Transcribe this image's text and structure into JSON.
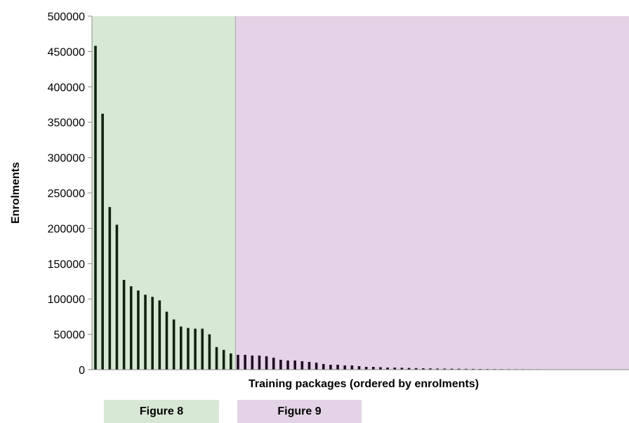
{
  "chart_data": {
    "type": "bar",
    "xlabel": "Training packages (ordered by enrolments)",
    "ylabel": "Enrolments",
    "ylim": [
      0,
      500000
    ],
    "yticks": [
      0,
      50000,
      100000,
      150000,
      200000,
      250000,
      300000,
      350000,
      400000,
      450000,
      500000
    ],
    "grid": false,
    "bar_color": "#0f240f",
    "bar_color_after_split": "#1e0d22",
    "values": [
      458000,
      362000,
      230000,
      205000,
      127000,
      118000,
      112000,
      106000,
      103000,
      98000,
      82000,
      71000,
      61000,
      59000,
      58000,
      58000,
      50000,
      32000,
      28000,
      23000,
      21000,
      21000,
      20000,
      20000,
      19000,
      17000,
      14000,
      13000,
      13000,
      12000,
      11000,
      10000,
      8000,
      7000,
      7000,
      6000,
      6000,
      5000,
      4000,
      4000,
      3500,
      3000,
      3000,
      2800,
      2500,
      2200,
      2000,
      1800,
      1600,
      1500,
      1400,
      1300,
      1200,
      1100,
      1000,
      900,
      850,
      800,
      750,
      700,
      650,
      600,
      550,
      500,
      450,
      420,
      400,
      380,
      350,
      330,
      300,
      280,
      260,
      240,
      220
    ],
    "regions": [
      {
        "label": "Figure 8",
        "from_index": 0,
        "to_index": 19,
        "color": "#d7e8d4"
      },
      {
        "label": "Figure 9",
        "from_index": 20,
        "to_index": 74,
        "color": "#e4d3e6"
      }
    ]
  },
  "legend": {
    "figure8_label": "Figure 8",
    "figure9_label": "Figure 9"
  }
}
